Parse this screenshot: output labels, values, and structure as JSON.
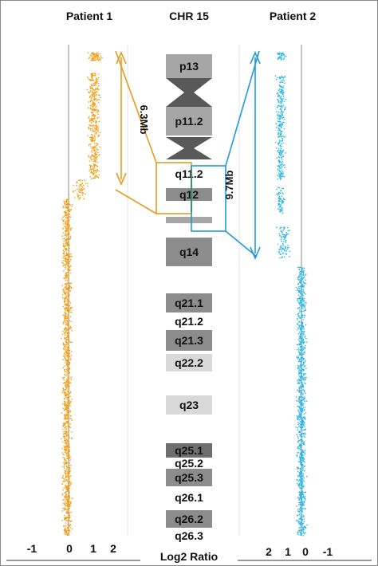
{
  "header": {
    "left": "Patient 1",
    "center": "CHR 15",
    "right": "Patient 2"
  },
  "bands": [
    {
      "label": "p13",
      "shade": "#a6a6a6"
    },
    {
      "label": "",
      "shade": "#595959"
    },
    {
      "label": "p11.2",
      "shade": "#a6a6a6"
    },
    {
      "label": "",
      "shade": "#595959"
    },
    {
      "label": "q11.2",
      "shade": "#ffffff"
    },
    {
      "label": "q12",
      "shade": "#8c8c8c"
    },
    {
      "label": "",
      "shade": "#a6a6a6"
    },
    {
      "label": "q14",
      "shade": "#8c8c8c"
    },
    {
      "label": "q21.1",
      "shade": "#8c8c8c"
    },
    {
      "label": "q21.2",
      "shade": "#ffffff"
    },
    {
      "label": "q21.3",
      "shade": "#8c8c8c"
    },
    {
      "label": "q22.2",
      "shade": "#d9d9d9"
    },
    {
      "label": "q23",
      "shade": "#d9d9d9"
    },
    {
      "label": "q25.1",
      "shade": "#6e6e6e"
    },
    {
      "label": "q25.2",
      "shade": "#ffffff"
    },
    {
      "label": "q25.3",
      "shade": "#8c8c8c"
    },
    {
      "label": "q26.1",
      "shade": "#ffffff"
    },
    {
      "label": "q26.2",
      "shade": "#8c8c8c"
    },
    {
      "label": "q26.3",
      "shade": "#ffffff"
    }
  ],
  "annotations": {
    "patient1_size": "6.3Mb",
    "patient2_size": "9.7Mb"
  },
  "axis": {
    "left_ticks": [
      "-1",
      "0",
      "1",
      "2"
    ],
    "right_ticks": [
      "2",
      "1",
      "0",
      "-1"
    ],
    "label": "Log2 Ratio"
  },
  "colors": {
    "patient1": "#f39c12",
    "patient2": "#29b6e6",
    "highlight_box1": "#e69a1e",
    "highlight_box2": "#1f9bd8",
    "junction_line": "#2e8b57"
  }
}
